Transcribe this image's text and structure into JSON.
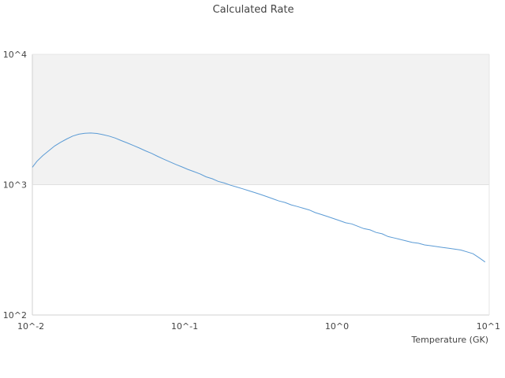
{
  "chart_data": {
    "type": "line",
    "title": "Calculated Rate",
    "xlabel": "Temperature (GK)",
    "ylabel": "",
    "x_scale": "log",
    "y_scale": "log",
    "xlim": [
      0.01,
      10
    ],
    "ylim": [
      100,
      10000
    ],
    "x_ticks": [
      {
        "value": 0.01,
        "label": "10^-2"
      },
      {
        "value": 0.1,
        "label": "10^-1"
      },
      {
        "value": 1,
        "label": "10^0"
      },
      {
        "value": 10,
        "label": "10^1"
      }
    ],
    "y_ticks": [
      {
        "value": 100,
        "label": "10^2"
      },
      {
        "value": 1000,
        "label": "10^3"
      },
      {
        "value": 10000,
        "label": "10^4"
      }
    ],
    "grid": false,
    "legend": "none",
    "colors": {
      "line": "#5b9bd5",
      "band": "#f2f2f2",
      "axis": "#d0d0d0"
    },
    "series": [
      {
        "x": [
          0.01,
          0.0107,
          0.0117,
          0.0128,
          0.014,
          0.0153,
          0.0168,
          0.0184,
          0.0202,
          0.0221,
          0.0242,
          0.0266,
          0.0291,
          0.0319,
          0.035,
          0.0383,
          0.042,
          0.046,
          0.0505,
          0.0553,
          0.0606,
          0.0664,
          0.0728,
          0.0798,
          0.0875,
          0.0959,
          0.105,
          0.115,
          0.126,
          0.138,
          0.152,
          0.166,
          0.182,
          0.2,
          0.219,
          0.24,
          0.263,
          0.288,
          0.316,
          0.346,
          0.379,
          0.416,
          0.456,
          0.5,
          0.548,
          0.6,
          0.658,
          0.721,
          0.79,
          0.866,
          0.949,
          1.04,
          1.14,
          1.25,
          1.37,
          1.5,
          1.65,
          1.81,
          1.98,
          2.17,
          2.38,
          2.6,
          2.86,
          3.13,
          3.43,
          3.76,
          4.12,
          4.52,
          4.95,
          5.43,
          5.95,
          6.52,
          7.14,
          7.83,
          8.58,
          9.4
        ],
        "y": [
          1360,
          1510,
          1670,
          1820,
          1980,
          2110,
          2240,
          2360,
          2440,
          2480,
          2490,
          2470,
          2420,
          2360,
          2280,
          2180,
          2090,
          2000,
          1910,
          1820,
          1740,
          1650,
          1570,
          1500,
          1430,
          1370,
          1310,
          1260,
          1210,
          1150,
          1110,
          1060,
          1030,
          990,
          960,
          930,
          900,
          870,
          840,
          810,
          780,
          750,
          730,
          700,
          680,
          660,
          640,
          610,
          590,
          570,
          550,
          530,
          510,
          500,
          480,
          460,
          450,
          430,
          420,
          400,
          390,
          380,
          370,
          360,
          355,
          345,
          340,
          335,
          330,
          325,
          320,
          315,
          305,
          295,
          275,
          255
        ]
      }
    ]
  }
}
